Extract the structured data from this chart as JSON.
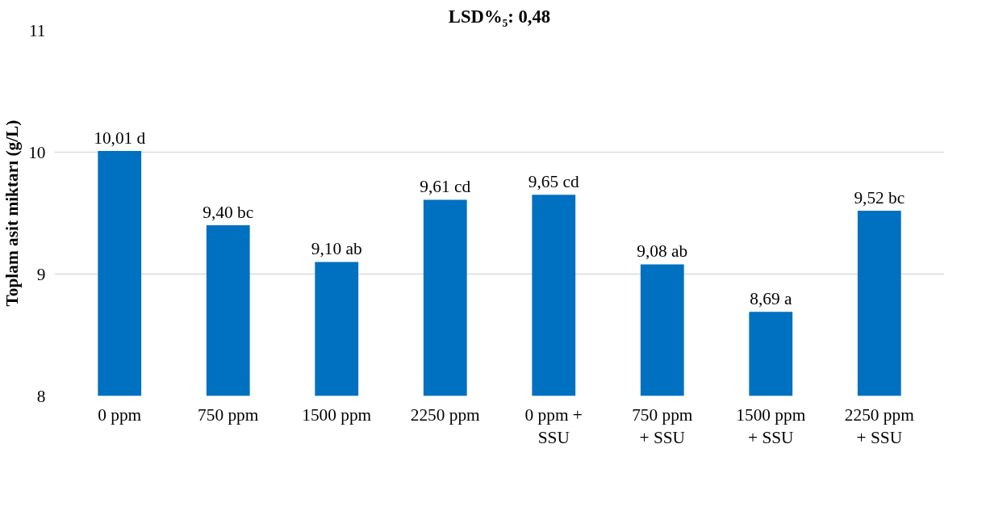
{
  "chart_data": {
    "type": "bar",
    "title": "LSD%₅: 0,48",
    "ylabel": "Toplam asit miktarı (g/L)",
    "categories": [
      "0 ppm",
      "750 ppm",
      "1500 ppm",
      "2250 ppm",
      "0 ppm +\nSSU",
      "750 ppm\n+ SSU",
      "1500 ppm\n+ SSU",
      "2250 ppm\n+ SSU"
    ],
    "values": [
      10.01,
      9.4,
      9.1,
      9.61,
      9.65,
      9.08,
      8.69,
      9.52
    ],
    "value_labels": [
      "10,01 d",
      "9,40 bc",
      "9,10 ab",
      "9,61 cd",
      "9,65 cd",
      "9,08 ab",
      "8,69 a",
      "9,52 bc"
    ],
    "color": "#0070c0",
    "ylim": [
      8,
      11
    ],
    "yticks": [
      8,
      9,
      10,
      11
    ],
    "grid": "y"
  }
}
